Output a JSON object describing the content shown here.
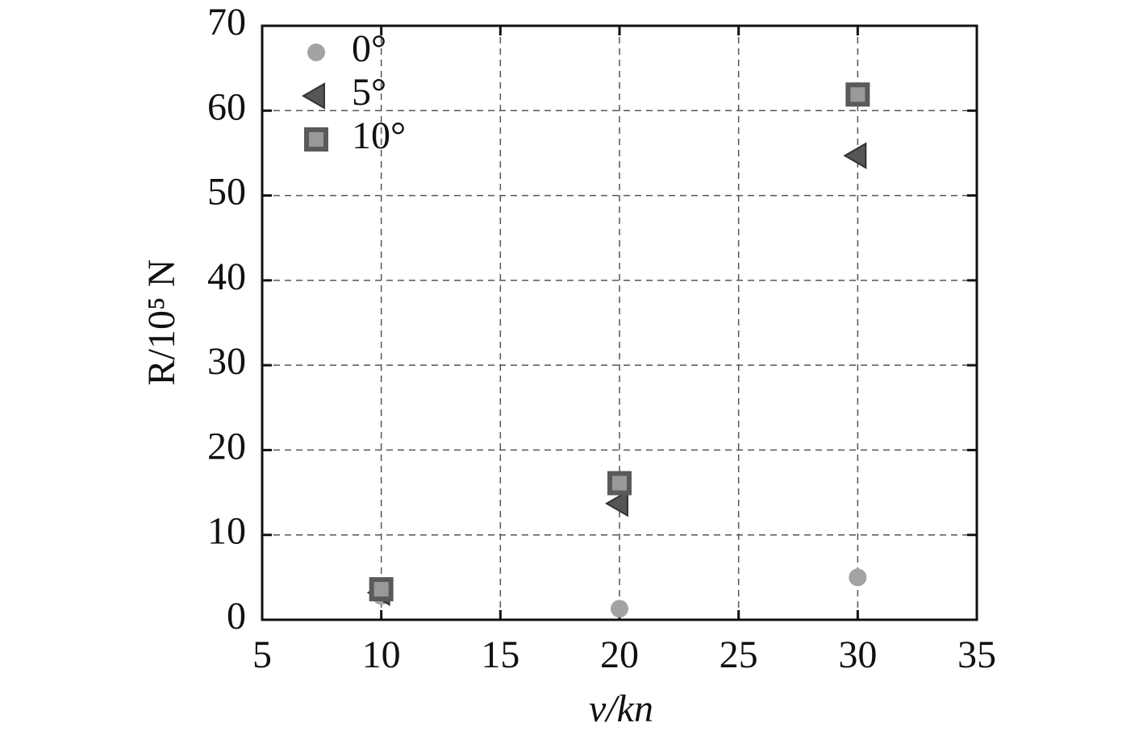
{
  "chart_data": {
    "type": "scatter",
    "xlabel": "v/kn",
    "ylabel": "R/10⁵ N",
    "xlim": [
      5,
      35
    ],
    "xticks": [
      5,
      10,
      15,
      20,
      25,
      30,
      35
    ],
    "ylim": [
      0,
      70
    ],
    "yticks": [
      0,
      10,
      20,
      30,
      40,
      50,
      60,
      70
    ],
    "grid": true,
    "legend": "upper left",
    "series": [
      {
        "name": "0°",
        "color": "#a3a3a3",
        "marker": "circle",
        "x": [
          10,
          20,
          30
        ],
        "values": [
          2.8,
          1.3,
          5.0
        ]
      },
      {
        "name": "5°",
        "color": "#555555",
        "marker": "triangle-left",
        "x": [
          10,
          20,
          30
        ],
        "values": [
          3.2,
          13.7,
          54.7
        ]
      },
      {
        "name": "10°",
        "color": "#5a5a5a",
        "marker": "square",
        "x": [
          10,
          20,
          30
        ],
        "values": [
          3.6,
          16.1,
          61.9
        ]
      }
    ]
  }
}
